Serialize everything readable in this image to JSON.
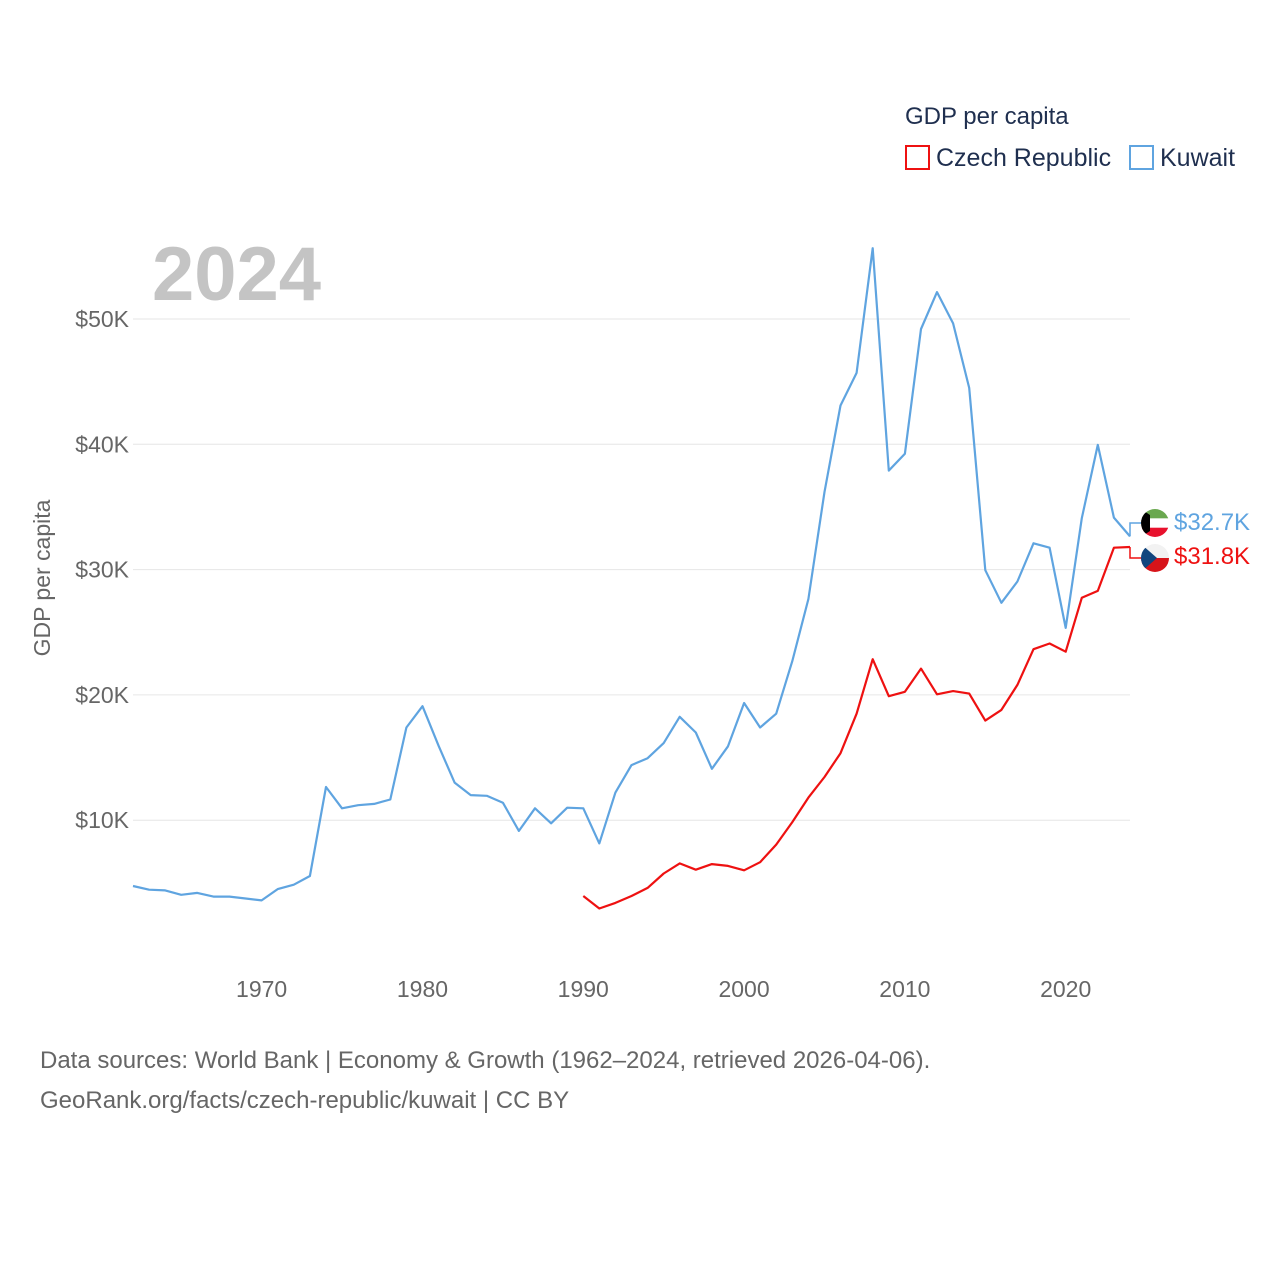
{
  "chart_data": {
    "type": "line",
    "title": "",
    "year_label": "2024",
    "ylabel": "GDP per capita",
    "xlabel": "",
    "xlim": [
      1962,
      2024
    ],
    "ylim": [
      0,
      58000
    ],
    "x_ticks": [
      1970,
      1980,
      1990,
      2000,
      2010,
      2020
    ],
    "x_tick_labels": [
      "1970",
      "1980",
      "1990",
      "2000",
      "2010",
      "2020"
    ],
    "y_ticks": [
      10000,
      20000,
      30000,
      40000,
      50000
    ],
    "y_tick_labels": [
      "$10K",
      "$20K",
      "$30K",
      "$40K",
      "$50K"
    ],
    "legend": {
      "title": "GDP per capita",
      "placement": "top-right",
      "entries": [
        "Czech Republic",
        "Kuwait"
      ]
    },
    "series": [
      {
        "name": "Czech Republic",
        "color": "#ee1111",
        "end_label": "$31.8K",
        "x": [
          1990,
          1991,
          1992,
          1993,
          1994,
          1995,
          1996,
          1997,
          1998,
          1999,
          2000,
          2001,
          2002,
          2003,
          2004,
          2005,
          2006,
          2007,
          2008,
          2009,
          2010,
          2011,
          2012,
          2013,
          2014,
          2015,
          2016,
          2017,
          2018,
          2019,
          2020,
          2021,
          2022,
          2023,
          2024
        ],
        "values": [
          3950,
          2950,
          3400,
          3950,
          4600,
          5750,
          6550,
          6050,
          6500,
          6350,
          6000,
          6650,
          8050,
          9850,
          11800,
          13450,
          15350,
          18500,
          22850,
          19900,
          20250,
          22100,
          20050,
          20300,
          20100,
          17950,
          18800,
          20800,
          23650,
          24100,
          23450,
          27750,
          28300,
          31750,
          31800
        ]
      },
      {
        "name": "Kuwait",
        "color": "#5fa4e0",
        "end_label": "$32.7K",
        "x": [
          1962,
          1963,
          1964,
          1965,
          1966,
          1967,
          1968,
          1969,
          1970,
          1971,
          1972,
          1973,
          1974,
          1975,
          1976,
          1977,
          1978,
          1979,
          1980,
          1981,
          1982,
          1983,
          1984,
          1985,
          1986,
          1987,
          1988,
          1989,
          1990,
          1991,
          1992,
          1993,
          1994,
          1995,
          1996,
          1997,
          1998,
          1999,
          2000,
          2001,
          2002,
          2003,
          2004,
          2005,
          2006,
          2007,
          2008,
          2009,
          2010,
          2011,
          2012,
          2013,
          2014,
          2015,
          2016,
          2017,
          2018,
          2019,
          2020,
          2021,
          2022,
          2023,
          2024
        ],
        "values": [
          4750,
          4450,
          4400,
          4050,
          4200,
          3900,
          3900,
          3750,
          3600,
          4500,
          4850,
          5550,
          12650,
          10950,
          11200,
          11300,
          11650,
          17400,
          19100,
          15950,
          13000,
          12000,
          11950,
          11400,
          9150,
          10950,
          9750,
          11000,
          10950,
          8150,
          12200,
          14400,
          14950,
          16150,
          18250,
          17000,
          14100,
          15900,
          19350,
          17400,
          18500,
          22700,
          27650,
          36200,
          43100,
          45700,
          55650,
          37900,
          39250,
          49200,
          52150,
          49650,
          44500,
          29950,
          27350,
          29050,
          32100,
          31750,
          25350,
          34100,
          39950,
          34150,
          32650
        ]
      }
    ]
  },
  "footer": {
    "line1": "Data sources: World Bank | Economy & Growth (1962–2024, retrieved 2026-04-06).",
    "line2": "GeoRank.org/facts/czech-republic/kuwait | CC BY"
  }
}
